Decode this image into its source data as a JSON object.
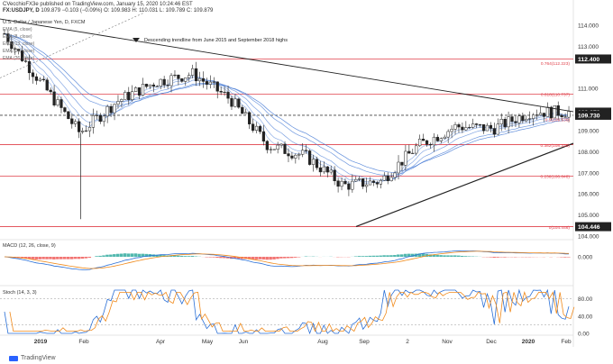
{
  "header": {
    "publisher_line": "CVecchioFX3e published on TradingView.com, January 15, 2020 10:24:46 EST",
    "symbol_line": "FX:USDJPY, D",
    "ohlc": "109.879 −0.103 (−0.09%) O: 109.983 H: 110.031 L: 109.789 C: 109.879"
  },
  "chart_title": "U.S. Dollar / Japanese Yen, D, FXCM",
  "legend_items": [
    "EMA (5, close)",
    "EMA (8, close)",
    "EMA (13, close)",
    "EMA (21, close)",
    "EMA (26, close)"
  ],
  "annotation": "Descending trendline from June 2015 and September 2018 highs",
  "price_axis": {
    "ticks": [
      "114.000",
      "113.000",
      "111.000",
      "110.000",
      "109.000",
      "108.000",
      "107.000",
      "106.000",
      "105.000",
      "104.000"
    ],
    "badges": [
      {
        "value": "112.400",
        "color": "#222222"
      },
      {
        "value": "109.879",
        "color": "#222222"
      },
      {
        "value": "109.730",
        "color": "#222222"
      },
      {
        "value": "104.446",
        "color": "#222222"
      }
    ]
  },
  "fib_labels": [
    {
      "text": "0.764(112.223)",
      "price": 112.223
    },
    {
      "text": "0.618(110.737)",
      "price": 110.737
    },
    {
      "text": "0.5(109.536)",
      "price": 109.536
    },
    {
      "text": "0.382(108.335)",
      "price": 108.335
    },
    {
      "text": "0.236(106.848)",
      "price": 106.848
    },
    {
      "text": "0(104.446)",
      "price": 104.446
    }
  ],
  "macd": {
    "label": "MACD (12, 26, close, 9)",
    "ticks": [
      "0.000"
    ]
  },
  "stoch": {
    "label": "Stoch (14, 3, 3)",
    "ticks": [
      "80.00",
      "40.00",
      "0.00"
    ]
  },
  "time_axis": [
    "2019",
    "Feb",
    "Apr",
    "May",
    "Jun",
    "Aug",
    "Sep",
    "2",
    "Nov",
    "Dec",
    "2020",
    "Feb"
  ],
  "footer": {
    "brand": "TradingView"
  },
  "colors": {
    "candle": "#222222",
    "resistance": "#e0404a",
    "trendline": "#222222",
    "ema": "#4a7dd6",
    "macd_line": "#2a6fd6",
    "signal_line": "#f08a1c",
    "hist_up": "#26a69a",
    "hist_down": "#ef5350"
  },
  "chart_data": {
    "type": "candlestick",
    "title": "U.S. Dollar / Japanese Yen, D, FXCM",
    "ylim": [
      104.0,
      114.6
    ],
    "horizontal_levels": [
      112.4,
      110.737,
      109.73,
      108.335,
      106.848,
      104.446
    ],
    "x": [
      "Dec",
      "Jan",
      "2019",
      "Feb",
      "Mar",
      "Apr",
      "May",
      "Jun",
      "Jul",
      "Aug",
      "Sep",
      "Oct",
      "Nov",
      "Dec",
      "2020",
      "Jan2"
    ],
    "close": [
      113.6,
      111.2,
      108.9,
      110.4,
      111.3,
      111.7,
      110.5,
      108.3,
      107.8,
      106.4,
      106.6,
      108.3,
      109.2,
      109.1,
      109.9,
      109.88
    ],
    "trendline_desc": {
      "from": 114.3,
      "to": 109.9
    },
    "trendline_asc": {
      "from": 104.45,
      "to": 108.4
    }
  }
}
